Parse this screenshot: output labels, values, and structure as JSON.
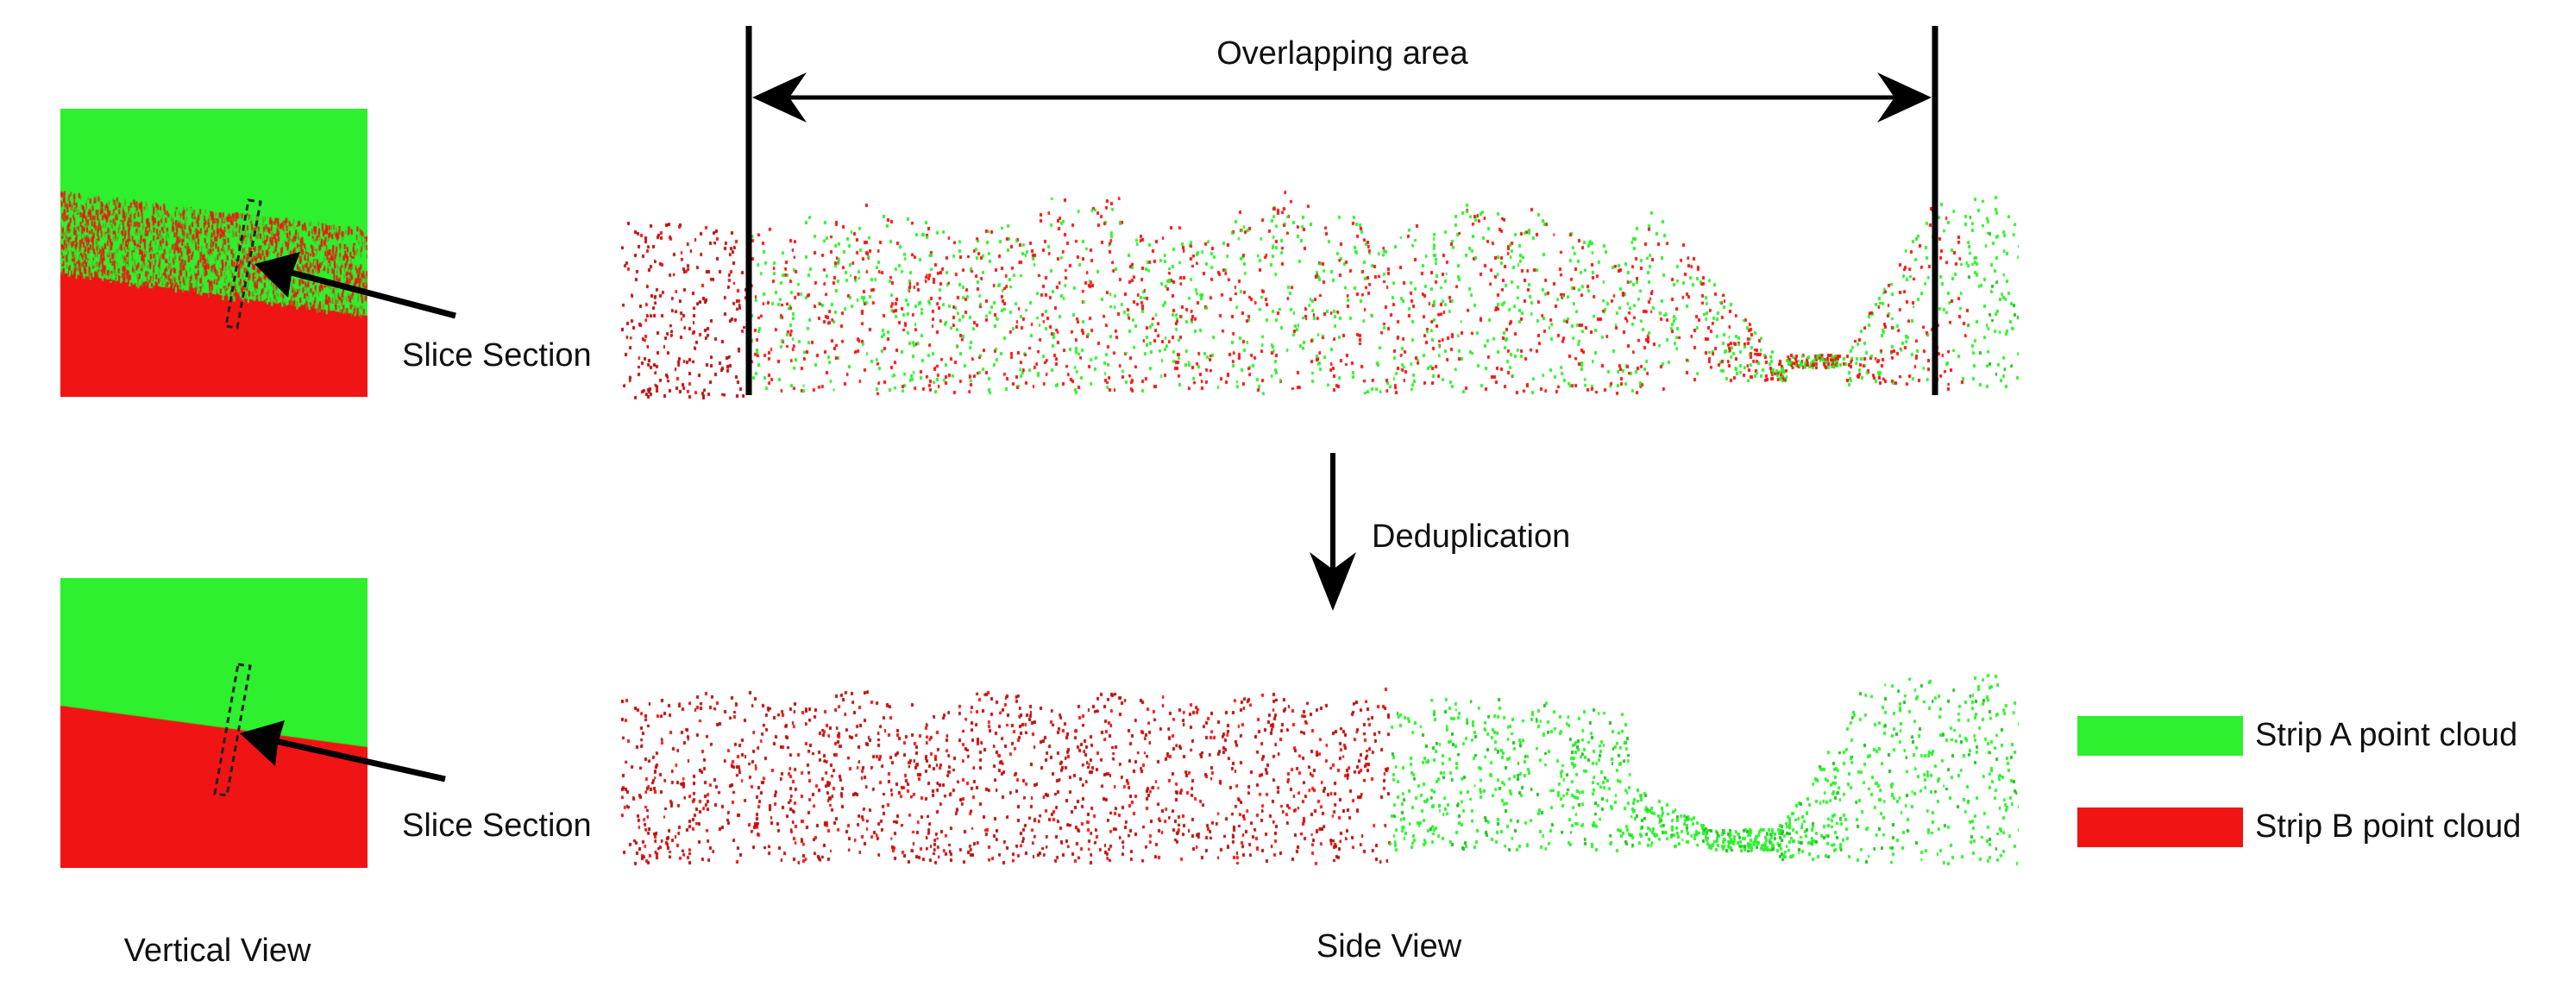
{
  "labels": {
    "overlap": "Overlapping area",
    "slice_top": "Slice Section",
    "slice_bottom": "Slice Section",
    "dedup": "Deduplication",
    "vertical_view": "Vertical View",
    "side_view": "Side View"
  },
  "legend": [
    {
      "label": "Strip A point cloud",
      "color": "#2ef02e"
    },
    {
      "label": "Strip B point cloud",
      "color": "#f01414"
    }
  ],
  "colors": {
    "strip_a": "#2ef02e",
    "strip_b": "#f01414",
    "strip_b_dark": "#b80f0f",
    "strip_a_dark": "#1fbf1f"
  }
}
